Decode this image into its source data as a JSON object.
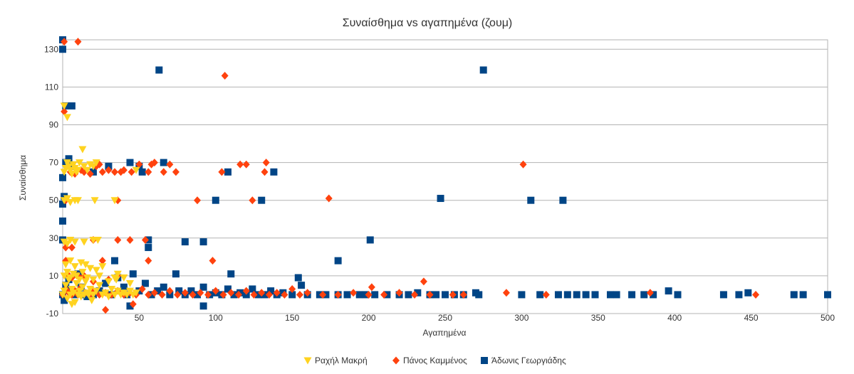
{
  "chart_data": {
    "type": "scatter",
    "title": "Συναίσθημα vs αγαπημένα (ζουμ)",
    "xlabel": "Αγαπημένα",
    "ylabel": "Συναίσθημα",
    "xlim": [
      0,
      500
    ],
    "ylim": [
      -10,
      135
    ],
    "xticks": [
      50,
      100,
      150,
      200,
      250,
      300,
      350,
      400,
      450,
      500
    ],
    "yticks": [
      -10,
      10,
      30,
      50,
      70,
      90,
      110,
      130
    ],
    "grid": true,
    "legend": "bottom",
    "series": [
      {
        "name": "Ραχήλ Μακρή",
        "color": "#ffd320",
        "marker": "triangle-down",
        "points": [
          [
            0,
            0
          ],
          [
            1,
            2
          ],
          [
            2,
            5
          ],
          [
            3,
            -2
          ],
          [
            4,
            8
          ],
          [
            5,
            0
          ],
          [
            6,
            3
          ],
          [
            7,
            1
          ],
          [
            8,
            -4
          ],
          [
            9,
            6
          ],
          [
            10,
            0
          ],
          [
            11,
            2
          ],
          [
            12,
            -1
          ],
          [
            13,
            4
          ],
          [
            14,
            0
          ],
          [
            15,
            7
          ],
          [
            16,
            1
          ],
          [
            17,
            0
          ],
          [
            18,
            3
          ],
          [
            19,
            -3
          ],
          [
            20,
            0
          ],
          [
            22,
            2
          ],
          [
            24,
            5
          ],
          [
            26,
            0
          ],
          [
            28,
            1
          ],
          [
            30,
            -1
          ],
          [
            32,
            3
          ],
          [
            34,
            0
          ],
          [
            36,
            2
          ],
          [
            38,
            0
          ],
          [
            40,
            1
          ],
          [
            42,
            0
          ],
          [
            44,
            2
          ],
          [
            46,
            0
          ],
          [
            48,
            1
          ],
          [
            1,
            10
          ],
          [
            3,
            12
          ],
          [
            5,
            9
          ],
          [
            7,
            11
          ],
          [
            9,
            10
          ],
          [
            11,
            8
          ],
          [
            13,
            12
          ],
          [
            16,
            9
          ],
          [
            20,
            8
          ],
          [
            24,
            10
          ],
          [
            30,
            7
          ],
          [
            35,
            8
          ],
          [
            40,
            9
          ],
          [
            44,
            6
          ],
          [
            2,
            16
          ],
          [
            5,
            18
          ],
          [
            8,
            15
          ],
          [
            12,
            17
          ],
          [
            15,
            16
          ],
          [
            18,
            14
          ],
          [
            22,
            13
          ],
          [
            26,
            15
          ],
          [
            1,
            28
          ],
          [
            3,
            27
          ],
          [
            5,
            29
          ],
          [
            8,
            28
          ],
          [
            14,
            28
          ],
          [
            20,
            29
          ],
          [
            23,
            29
          ],
          [
            1,
            50
          ],
          [
            3,
            51
          ],
          [
            5,
            49
          ],
          [
            8,
            50
          ],
          [
            10,
            50
          ],
          [
            21,
            50
          ],
          [
            34,
            50
          ],
          [
            1,
            65
          ],
          [
            2,
            67
          ],
          [
            3,
            70
          ],
          [
            4,
            68
          ],
          [
            5,
            66
          ],
          [
            6,
            64
          ],
          [
            7,
            69
          ],
          [
            8,
            67
          ],
          [
            9,
            65
          ],
          [
            10,
            66
          ],
          [
            11,
            70
          ],
          [
            14,
            68
          ],
          [
            16,
            66
          ],
          [
            18,
            69
          ],
          [
            20,
            68
          ],
          [
            22,
            70
          ],
          [
            48,
            66
          ],
          [
            13,
            77
          ],
          [
            3,
            94
          ],
          [
            1,
            100
          ],
          [
            36,
            11
          ],
          [
            34,
            9
          ],
          [
            6,
            -5
          ]
        ]
      },
      {
        "name": "Πάνος Καμμένος",
        "color": "#ff420e",
        "marker": "diamond",
        "points": [
          [
            0,
            0
          ],
          [
            2,
            3
          ],
          [
            4,
            1
          ],
          [
            6,
            0
          ],
          [
            8,
            2
          ],
          [
            10,
            0
          ],
          [
            12,
            4
          ],
          [
            15,
            1
          ],
          [
            18,
            0
          ],
          [
            20,
            2
          ],
          [
            24,
            0
          ],
          [
            28,
            1
          ],
          [
            32,
            0
          ],
          [
            36,
            2
          ],
          [
            40,
            0
          ],
          [
            44,
            1
          ],
          [
            48,
            0
          ],
          [
            52,
            3
          ],
          [
            56,
            0
          ],
          [
            60,
            1
          ],
          [
            65,
            0
          ],
          [
            70,
            2
          ],
          [
            75,
            0
          ],
          [
            80,
            1
          ],
          [
            85,
            0
          ],
          [
            90,
            1
          ],
          [
            95,
            0
          ],
          [
            100,
            2
          ],
          [
            105,
            0
          ],
          [
            110,
            1
          ],
          [
            115,
            0
          ],
          [
            120,
            2
          ],
          [
            125,
            0
          ],
          [
            130,
            1
          ],
          [
            135,
            0
          ],
          [
            140,
            1
          ],
          [
            145,
            0
          ],
          [
            150,
            3
          ],
          [
            155,
            0
          ],
          [
            160,
            1
          ],
          [
            170,
            0
          ],
          [
            180,
            0
          ],
          [
            190,
            1
          ],
          [
            200,
            0
          ],
          [
            210,
            0
          ],
          [
            220,
            1
          ],
          [
            230,
            0
          ],
          [
            240,
            0
          ],
          [
            255,
            0
          ],
          [
            262,
            0
          ],
          [
            290,
            1
          ],
          [
            316,
            0
          ],
          [
            384,
            1
          ],
          [
            453,
            0
          ],
          [
            1,
            97
          ],
          [
            1,
            134
          ],
          [
            10,
            134
          ],
          [
            106,
            116
          ],
          [
            5,
            65
          ],
          [
            8,
            64
          ],
          [
            12,
            66
          ],
          [
            14,
            65
          ],
          [
            18,
            64
          ],
          [
            22,
            68
          ],
          [
            24,
            69
          ],
          [
            26,
            65
          ],
          [
            30,
            66
          ],
          [
            34,
            65
          ],
          [
            38,
            65
          ],
          [
            40,
            66
          ],
          [
            45,
            65
          ],
          [
            50,
            69
          ],
          [
            56,
            65
          ],
          [
            58,
            69
          ],
          [
            60,
            70
          ],
          [
            66,
            65
          ],
          [
            70,
            69
          ],
          [
            74,
            65
          ],
          [
            104,
            65
          ],
          [
            116,
            69
          ],
          [
            120,
            69
          ],
          [
            132,
            65
          ],
          [
            133,
            70
          ],
          [
            301,
            69
          ],
          [
            2,
            50
          ],
          [
            36,
            50
          ],
          [
            88,
            50
          ],
          [
            124,
            50
          ],
          [
            174,
            51
          ],
          [
            2,
            25
          ],
          [
            6,
            25
          ],
          [
            20,
            29
          ],
          [
            36,
            29
          ],
          [
            44,
            29
          ],
          [
            54,
            29
          ],
          [
            56,
            18
          ],
          [
            98,
            18
          ],
          [
            3,
            11
          ],
          [
            6,
            9
          ],
          [
            10,
            10
          ],
          [
            14,
            10
          ],
          [
            20,
            7
          ],
          [
            26,
            18
          ],
          [
            30,
            8
          ],
          [
            36,
            10
          ],
          [
            236,
            7
          ],
          [
            2,
            18
          ],
          [
            28,
            -8
          ],
          [
            46,
            -5
          ],
          [
            202,
            4
          ]
        ]
      },
      {
        "name": "Άδωνις Γεωργιάδης",
        "color": "#004586",
        "marker": "square",
        "points": [
          [
            0,
            0
          ],
          [
            1,
            -3
          ],
          [
            2,
            5
          ],
          [
            4,
            8
          ],
          [
            6,
            2
          ],
          [
            8,
            0
          ],
          [
            10,
            11
          ],
          [
            12,
            4
          ],
          [
            14,
            0
          ],
          [
            16,
            -1
          ],
          [
            20,
            0
          ],
          [
            24,
            2
          ],
          [
            28,
            6
          ],
          [
            32,
            0
          ],
          [
            36,
            9
          ],
          [
            40,
            4
          ],
          [
            42,
            0
          ],
          [
            44,
            -6
          ],
          [
            46,
            11
          ],
          [
            50,
            2
          ],
          [
            54,
            6
          ],
          [
            58,
            0
          ],
          [
            62,
            2
          ],
          [
            66,
            4
          ],
          [
            70,
            0
          ],
          [
            74,
            11
          ],
          [
            76,
            2
          ],
          [
            80,
            0
          ],
          [
            84,
            2
          ],
          [
            88,
            0
          ],
          [
            92,
            4
          ],
          [
            96,
            0
          ],
          [
            100,
            1
          ],
          [
            104,
            0
          ],
          [
            108,
            3
          ],
          [
            110,
            11
          ],
          [
            112,
            0
          ],
          [
            116,
            1
          ],
          [
            120,
            0
          ],
          [
            124,
            3
          ],
          [
            128,
            0
          ],
          [
            132,
            0
          ],
          [
            136,
            2
          ],
          [
            140,
            0
          ],
          [
            144,
            1
          ],
          [
            150,
            0
          ],
          [
            154,
            9
          ],
          [
            156,
            5
          ],
          [
            160,
            0
          ],
          [
            168,
            0
          ],
          [
            172,
            0
          ],
          [
            180,
            0
          ],
          [
            186,
            0
          ],
          [
            194,
            0
          ],
          [
            198,
            0
          ],
          [
            204,
            0
          ],
          [
            212,
            0
          ],
          [
            220,
            0
          ],
          [
            226,
            0
          ],
          [
            232,
            1
          ],
          [
            240,
            0
          ],
          [
            244,
            0
          ],
          [
            250,
            0
          ],
          [
            256,
            0
          ],
          [
            262,
            0
          ],
          [
            270,
            1
          ],
          [
            272,
            0
          ],
          [
            300,
            0
          ],
          [
            312,
            0
          ],
          [
            324,
            0
          ],
          [
            330,
            0
          ],
          [
            336,
            0
          ],
          [
            342,
            0
          ],
          [
            348,
            0
          ],
          [
            358,
            0
          ],
          [
            362,
            0
          ],
          [
            372,
            0
          ],
          [
            380,
            0
          ],
          [
            386,
            0
          ],
          [
            396,
            2
          ],
          [
            402,
            0
          ],
          [
            432,
            0
          ],
          [
            442,
            0
          ],
          [
            448,
            1
          ],
          [
            478,
            0
          ],
          [
            484,
            0
          ],
          [
            500,
            0
          ],
          [
            0,
            130
          ],
          [
            0,
            135
          ],
          [
            2,
            100
          ],
          [
            6,
            100
          ],
          [
            63,
            119
          ],
          [
            275,
            119
          ],
          [
            2,
            70
          ],
          [
            4,
            72
          ],
          [
            6,
            68
          ],
          [
            20,
            65
          ],
          [
            30,
            68
          ],
          [
            44,
            70
          ],
          [
            50,
            68
          ],
          [
            52,
            65
          ],
          [
            66,
            70
          ],
          [
            108,
            65
          ],
          [
            138,
            65
          ],
          [
            0,
            62
          ],
          [
            1,
            52
          ],
          [
            0,
            48
          ],
          [
            100,
            50
          ],
          [
            130,
            50
          ],
          [
            247,
            51
          ],
          [
            306,
            50
          ],
          [
            327,
            50
          ],
          [
            0,
            39
          ],
          [
            0,
            29
          ],
          [
            56,
            29
          ],
          [
            56,
            25
          ],
          [
            80,
            28
          ],
          [
            92,
            28
          ],
          [
            201,
            29
          ],
          [
            180,
            18
          ],
          [
            34,
            18
          ],
          [
            92,
            -6
          ]
        ]
      }
    ]
  }
}
